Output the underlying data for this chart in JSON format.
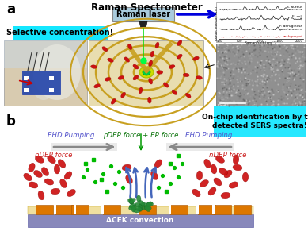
{
  "bg_color": "#ffffff",
  "title_a": "Raman Spectrometer",
  "label_a": "a",
  "label_b": "b",
  "raman_laser_text": "Raman laser",
  "selective_text": "Selective concentration!",
  "on_chip_text": "On-chip identification by the\ndetected SERS spectra!",
  "ehd_pumping_left": "EHD Pumping",
  "ehd_pumping_right": "EHD Pumping",
  "pdep_text": "pDEP force + EP force",
  "ndep_left": "nDEP force",
  "ndep_right": "nDEP force",
  "acek_text": "ACEK convection",
  "colors": {
    "cyan_bg": "#00e5ff",
    "raman_box": "#aaccdd",
    "blue_arrow": "#0000dd",
    "red_oval": "#cc1111",
    "green_dot": "#00aa00",
    "green_cluster": "#005500",
    "orange_electrode": "#cc6600",
    "blue_substrate": "#7777bb",
    "gray_arrow": "#bbbbbb",
    "blue_force_arrow": "#4477cc",
    "text_blue": "#5555cc",
    "text_red": "#cc2222",
    "text_green": "#117711",
    "text_black": "#000000",
    "white": "#ffffff",
    "gold": "#c8a020",
    "tan": "#d4b060"
  },
  "figsize": [
    3.89,
    3.01
  ],
  "dpi": 100
}
